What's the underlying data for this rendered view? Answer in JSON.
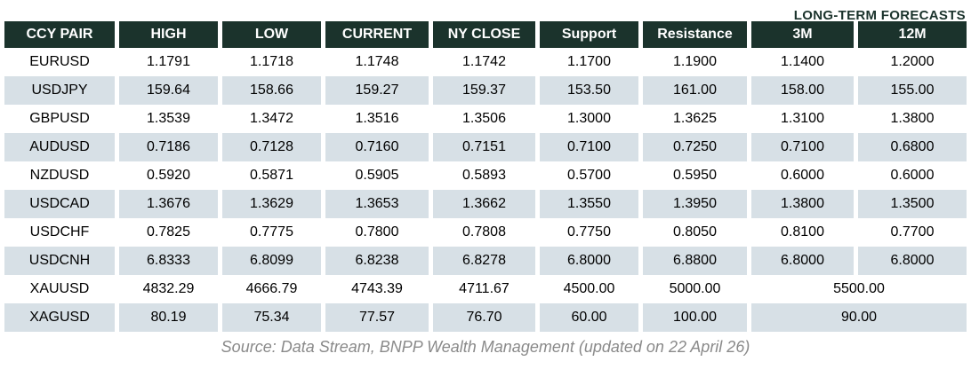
{
  "title": "LONG-TERM FORECASTS",
  "source_note": "Source: Data Stream, BNPP Wealth Management (updated on 22 April 26)",
  "colors": {
    "header_bg": "#1b332c",
    "header_text": "#ffffff",
    "row_alt_bg": "#d7e0e6",
    "title_text": "#1b332c",
    "source_text": "#8a8a8a"
  },
  "table": {
    "columns": [
      "CCY PAIR",
      "HIGH",
      "LOW",
      "CURRENT",
      "NY CLOSE",
      "Support",
      "Resistance",
      "3M",
      "12M"
    ],
    "rows": [
      {
        "pair": "EURUSD",
        "values": [
          "1.1791",
          "1.1718",
          "1.1748",
          "1.1742",
          "1.1700",
          "1.1900",
          "1.1400",
          "1.2000"
        ]
      },
      {
        "pair": "USDJPY",
        "values": [
          "159.64",
          "158.66",
          "159.27",
          "159.37",
          "153.50",
          "161.00",
          "158.00",
          "155.00"
        ]
      },
      {
        "pair": "GBPUSD",
        "values": [
          "1.3539",
          "1.3472",
          "1.3516",
          "1.3506",
          "1.3000",
          "1.3625",
          "1.3100",
          "1.3800"
        ]
      },
      {
        "pair": "AUDUSD",
        "values": [
          "0.7186",
          "0.7128",
          "0.7160",
          "0.7151",
          "0.7100",
          "0.7250",
          "0.7100",
          "0.6800"
        ]
      },
      {
        "pair": "NZDUSD",
        "values": [
          "0.5920",
          "0.5871",
          "0.5905",
          "0.5893",
          "0.5700",
          "0.5950",
          "0.6000",
          "0.6000"
        ]
      },
      {
        "pair": "USDCAD",
        "values": [
          "1.3676",
          "1.3629",
          "1.3653",
          "1.3662",
          "1.3550",
          "1.3950",
          "1.3800",
          "1.3500"
        ]
      },
      {
        "pair": "USDCHF",
        "values": [
          "0.7825",
          "0.7775",
          "0.7800",
          "0.7808",
          "0.7750",
          "0.8050",
          "0.8100",
          "0.7700"
        ]
      },
      {
        "pair": "USDCNH",
        "values": [
          "6.8333",
          "6.8099",
          "6.8238",
          "6.8278",
          "6.8000",
          "6.8800",
          "6.8000",
          "6.8000"
        ]
      },
      {
        "pair": "XAUUSD",
        "values": [
          "4832.29",
          "4666.79",
          "4743.39",
          "4711.67",
          "4500.00",
          "5000.00"
        ],
        "merged_forecast": "5500.00"
      },
      {
        "pair": "XAGUSD",
        "values": [
          "80.19",
          "75.34",
          "77.57",
          "76.70",
          "60.00",
          "100.00"
        ],
        "merged_forecast": "90.00"
      }
    ]
  }
}
